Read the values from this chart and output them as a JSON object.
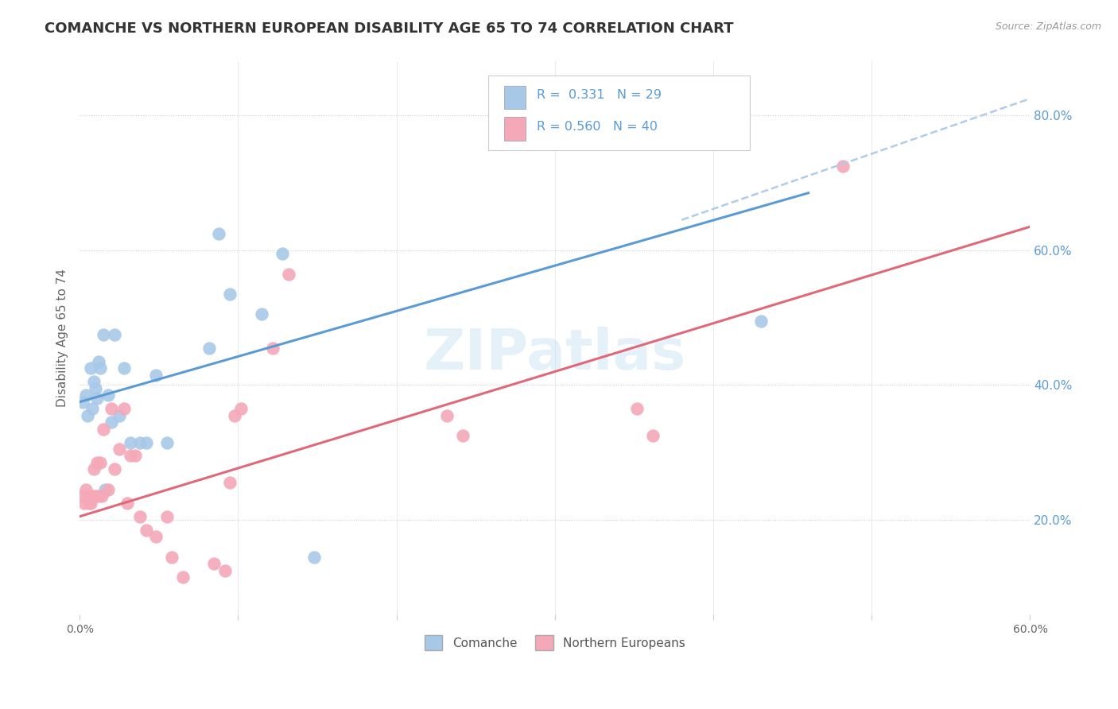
{
  "title": "COMANCHE VS NORTHERN EUROPEAN DISABILITY AGE 65 TO 74 CORRELATION CHART",
  "source": "Source: ZipAtlas.com",
  "ylabel": "Disability Age 65 to 74",
  "xlim": [
    0.0,
    0.6
  ],
  "ylim": [
    0.06,
    0.88
  ],
  "xtick_labels": [
    "0.0%",
    "",
    "",
    "",
    "",
    "",
    "60.0%"
  ],
  "xtick_vals": [
    0.0,
    0.1,
    0.2,
    0.3,
    0.4,
    0.5,
    0.6
  ],
  "ytick_labels_right": [
    "20.0%",
    "40.0%",
    "60.0%",
    "80.0%"
  ],
  "ytick_vals_right": [
    0.2,
    0.4,
    0.6,
    0.8
  ],
  "watermark": "ZIPatlas",
  "legend_label_comanche": "Comanche",
  "legend_label_northern": "Northern Europeans",
  "color_comanche": "#a8c8e8",
  "color_northern": "#f4a8b8",
  "color_line_comanche": "#5b9bd5",
  "color_line_northern": "#e06878",
  "color_line_dashed": "#b0cce8",
  "color_title": "#333333",
  "color_right_axis": "#5b9bd5",
  "comanche_x": [
    0.002,
    0.004,
    0.005,
    0.007,
    0.008,
    0.009,
    0.01,
    0.011,
    0.012,
    0.013,
    0.015,
    0.016,
    0.018,
    0.02,
    0.022,
    0.025,
    0.028,
    0.032,
    0.038,
    0.042,
    0.048,
    0.055,
    0.082,
    0.088,
    0.095,
    0.115,
    0.128,
    0.148,
    0.43
  ],
  "comanche_y": [
    0.375,
    0.385,
    0.355,
    0.425,
    0.365,
    0.405,
    0.395,
    0.38,
    0.435,
    0.425,
    0.475,
    0.245,
    0.385,
    0.345,
    0.475,
    0.355,
    0.425,
    0.315,
    0.315,
    0.315,
    0.415,
    0.315,
    0.455,
    0.625,
    0.535,
    0.505,
    0.595,
    0.145,
    0.495
  ],
  "northern_x": [
    0.002,
    0.003,
    0.004,
    0.005,
    0.006,
    0.007,
    0.008,
    0.009,
    0.01,
    0.011,
    0.012,
    0.013,
    0.014,
    0.015,
    0.018,
    0.02,
    0.022,
    0.025,
    0.028,
    0.03,
    0.032,
    0.035,
    0.038,
    0.042,
    0.048,
    0.055,
    0.058,
    0.065,
    0.085,
    0.092,
    0.095,
    0.098,
    0.102,
    0.122,
    0.132,
    0.232,
    0.242,
    0.352,
    0.362,
    0.482
  ],
  "northern_y": [
    0.235,
    0.225,
    0.245,
    0.235,
    0.225,
    0.225,
    0.235,
    0.275,
    0.235,
    0.285,
    0.235,
    0.285,
    0.235,
    0.335,
    0.245,
    0.365,
    0.275,
    0.305,
    0.365,
    0.225,
    0.295,
    0.295,
    0.205,
    0.185,
    0.175,
    0.205,
    0.145,
    0.115,
    0.135,
    0.125,
    0.255,
    0.355,
    0.365,
    0.455,
    0.565,
    0.355,
    0.325,
    0.365,
    0.325,
    0.725
  ],
  "comanche_line_x": [
    0.0,
    0.46
  ],
  "comanche_line_y": [
    0.375,
    0.685
  ],
  "northern_line_x": [
    0.0,
    0.6
  ],
  "northern_line_y": [
    0.205,
    0.635
  ],
  "dashed_line_x": [
    0.38,
    0.6
  ],
  "dashed_line_y": [
    0.645,
    0.825
  ],
  "background_color": "#ffffff",
  "grid_color": "#cccccc"
}
